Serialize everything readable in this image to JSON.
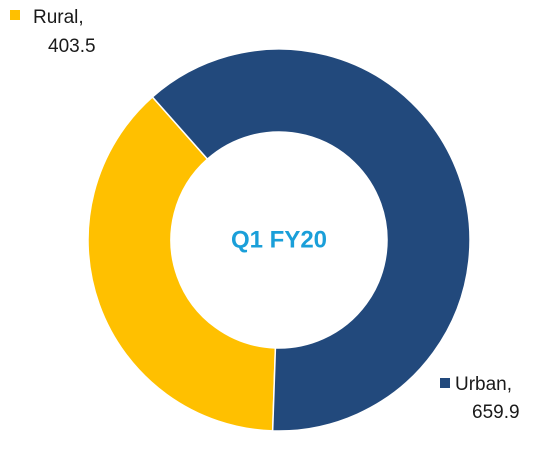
{
  "chart_data": {
    "type": "donut",
    "center_text": "Q1 FY20",
    "categories": [
      "Rural,",
      "Urban,"
    ],
    "values": [
      403.5,
      659.9
    ],
    "colors": [
      "#ffc000",
      "#22497c"
    ]
  }
}
